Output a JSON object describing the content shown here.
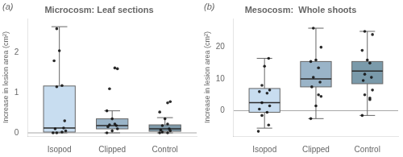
{
  "chart_data": [
    {
      "type": "box",
      "panel_label": "(a)",
      "title": "Microcosm: Leaf sections",
      "ylabel": "Increase in lesion area (cm²)",
      "categories": [
        "Isopod",
        "Clipped",
        "Control"
      ],
      "colors": [
        "#c8ddf0",
        "#9ab4c8",
        "#7f9aaa"
      ],
      "boxes": [
        {
          "q1": 0.02,
          "median": 0.12,
          "q3": 1.17,
          "whislo": 0.0,
          "whishi": 2.65
        },
        {
          "q1": 0.1,
          "median": 0.18,
          "q3": 0.35,
          "whislo": 0.0,
          "whishi": 0.55
        },
        {
          "q1": 0.04,
          "median": 0.1,
          "q3": 0.2,
          "whislo": 0.0,
          "whishi": 0.38
        }
      ],
      "points": [
        [
          [
            -0.12,
            0.0
          ],
          [
            -0.05,
            0.0
          ],
          [
            0.05,
            0.02
          ],
          [
            0.12,
            0.05
          ],
          [
            -0.08,
            0.1
          ],
          [
            0.08,
            0.12
          ],
          [
            -0.05,
            1.15
          ],
          [
            0.05,
            1.18
          ],
          [
            -0.1,
            1.8
          ],
          [
            0.0,
            2.05
          ],
          [
            -0.05,
            2.6
          ],
          [
            0.1,
            0.3
          ]
        ],
        [
          [
            -0.1,
            0.0
          ],
          [
            0.0,
            0.05
          ],
          [
            0.1,
            0.1
          ],
          [
            -0.08,
            0.15
          ],
          [
            0.08,
            0.18
          ],
          [
            -0.05,
            0.2
          ],
          [
            0.05,
            0.22
          ],
          [
            0.0,
            0.35
          ],
          [
            -0.1,
            0.55
          ],
          [
            -0.05,
            1.1
          ],
          [
            0.1,
            1.6
          ],
          [
            0.05,
            1.62
          ]
        ],
        [
          [
            -0.1,
            0.0
          ],
          [
            0.05,
            0.0
          ],
          [
            -0.05,
            0.02
          ],
          [
            0.1,
            0.05
          ],
          [
            -0.08,
            0.07
          ],
          [
            0.08,
            0.1
          ],
          [
            -0.05,
            0.18
          ],
          [
            0.05,
            0.22
          ],
          [
            0.0,
            0.35
          ],
          [
            -0.1,
            0.52
          ],
          [
            0.05,
            0.75
          ],
          [
            0.1,
            0.78
          ]
        ]
      ],
      "hline": 0,
      "ylim": [
        -0.08,
        2.85
      ],
      "yticks": [
        0,
        1,
        2
      ],
      "grid": false
    },
    {
      "type": "box",
      "panel_label": "(b)",
      "title": "Mesocosm:  Whole shoots",
      "ylabel": "Increase in lesion area (cm²)",
      "categories": [
        "Isopod",
        "Clipped",
        "Control"
      ],
      "colors": [
        "#c8ddf0",
        "#9ab4c8",
        "#7a9aaa"
      ],
      "boxes": [
        {
          "q1": -0.5,
          "median": 2.5,
          "q3": 7.0,
          "whislo": -5.5,
          "whishi": 16.5
        },
        {
          "q1": 7.5,
          "median": 10.0,
          "q3": 15.5,
          "whislo": -2.5,
          "whishi": 26.0
        },
        {
          "q1": 8.5,
          "median": 12.5,
          "q3": 15.5,
          "whislo": -1.5,
          "whishi": 25.0
        }
      ],
      "points": [
        [
          [
            -0.12,
            -6.5
          ],
          [
            0.08,
            -4.5
          ],
          [
            -0.05,
            -1.5
          ],
          [
            0.05,
            -0.5
          ],
          [
            -0.1,
            0.5
          ],
          [
            0.1,
            1.5
          ],
          [
            -0.05,
            2.5
          ],
          [
            0.05,
            5.5
          ],
          [
            -0.1,
            6.0
          ],
          [
            0.1,
            6.5
          ],
          [
            -0.05,
            8.0
          ],
          [
            0.0,
            14.0
          ],
          [
            0.08,
            16.5
          ]
        ],
        [
          [
            -0.1,
            -2.5
          ],
          [
            0.0,
            1.5
          ],
          [
            0.1,
            4.5
          ],
          [
            -0.08,
            7.5
          ],
          [
            0.08,
            9.0
          ],
          [
            -0.05,
            10.5
          ],
          [
            0.05,
            13.5
          ],
          [
            -0.1,
            15.5
          ],
          [
            0.0,
            16.0
          ],
          [
            0.1,
            20.0
          ],
          [
            -0.05,
            26.0
          ],
          [
            0.05,
            5.0
          ]
        ],
        [
          [
            -0.1,
            -1.5
          ],
          [
            0.05,
            3.5
          ],
          [
            -0.05,
            5.0
          ],
          [
            0.1,
            6.5
          ],
          [
            -0.08,
            9.5
          ],
          [
            0.08,
            10.5
          ],
          [
            -0.05,
            11.5
          ],
          [
            0.05,
            15.0
          ],
          [
            0.0,
            16.0
          ],
          [
            -0.1,
            19.0
          ],
          [
            0.1,
            24.0
          ],
          [
            -0.05,
            25.0
          ],
          [
            0.05,
            4.0
          ]
        ]
      ],
      "hline": 0,
      "ylim": [
        -8,
        29
      ],
      "yticks": [
        0,
        10,
        20
      ],
      "grid": false
    }
  ]
}
